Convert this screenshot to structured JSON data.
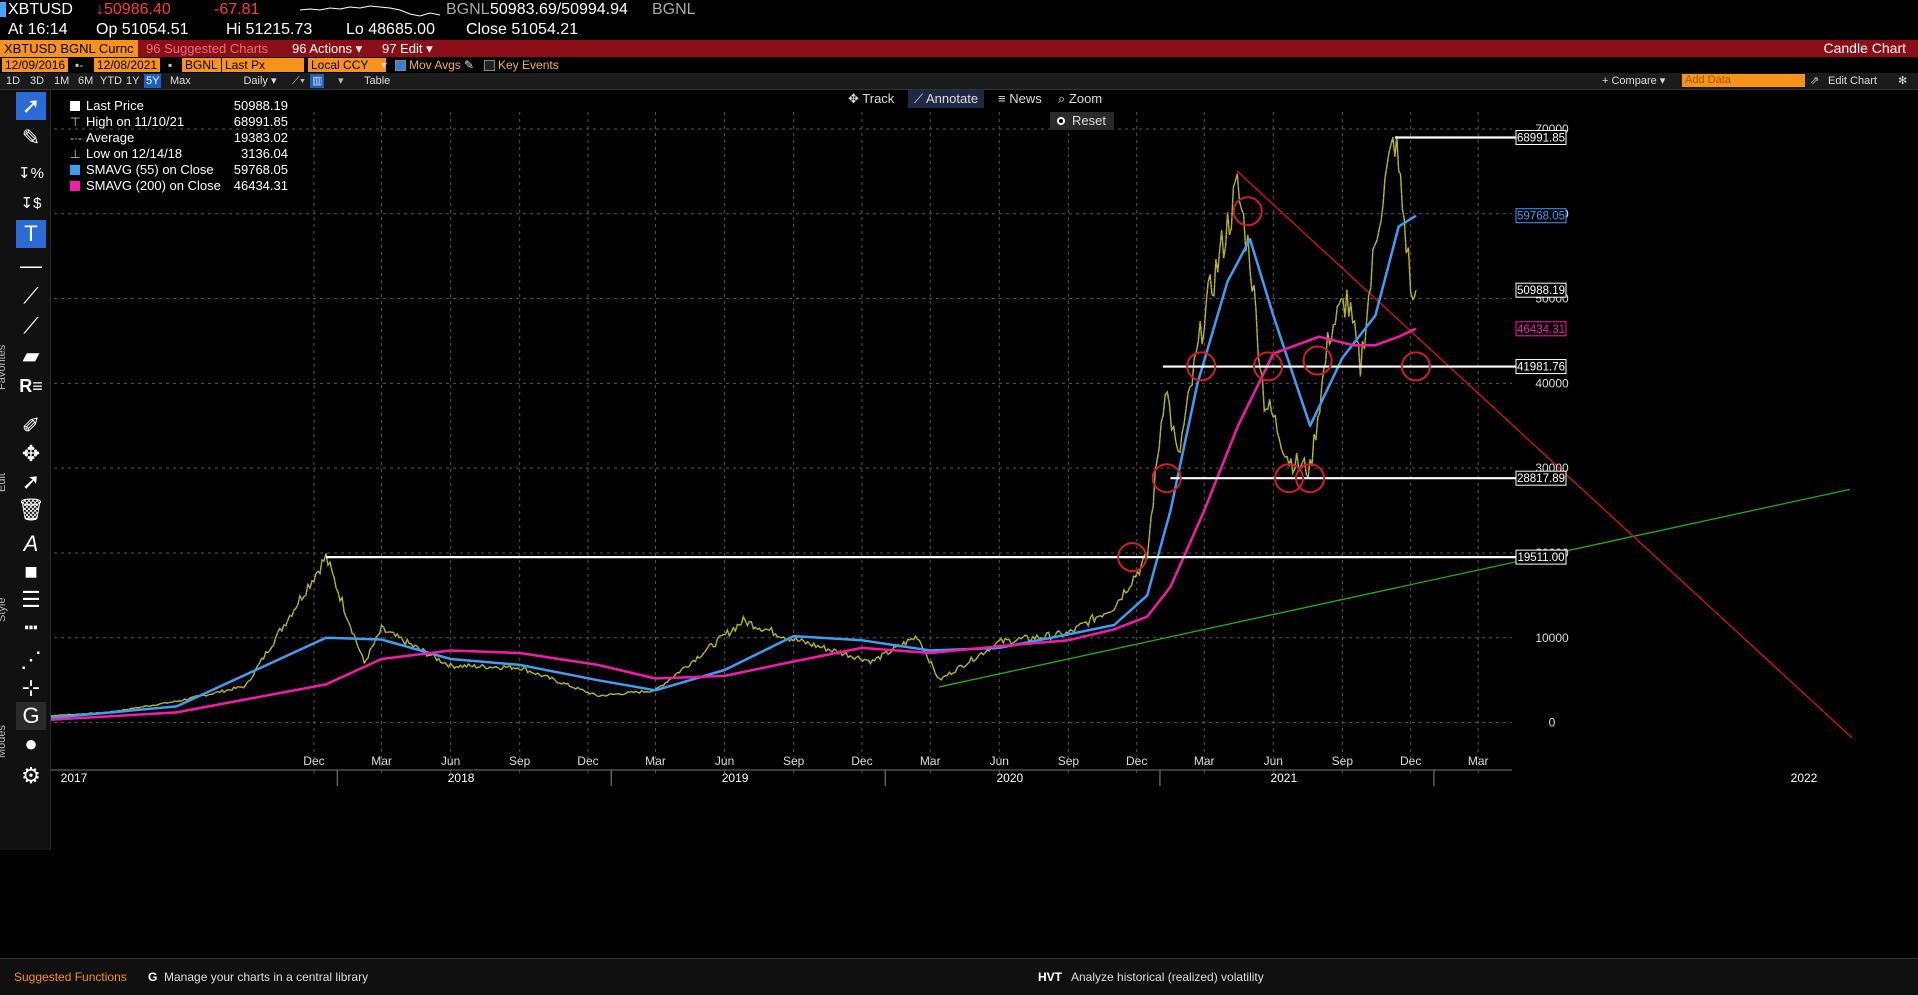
{
  "quote": {
    "symbol": "XBTUSD",
    "last": "↓50986.40",
    "change": "-67.81",
    "source1": "BGNL",
    "bid_ask": "50983.69/50994.94",
    "source2": "BGNL",
    "time": "At 16:14",
    "open": "Op 51054.51",
    "high": "Hi 51215.73",
    "low": "Lo 48685.00",
    "close": "Close 51054.21"
  },
  "menubar": {
    "security": "XBTUSD BGNL Curnc",
    "suggested": "96 Suggested Charts",
    "actions": "96 Actions ▾",
    "edit": "97 Edit ▾",
    "chart_type": "Candle Chart"
  },
  "params": {
    "start_date": "12/09/2016",
    "end_date": "12/08/2021",
    "source": "BGNL",
    "field": "Last Px",
    "currency": "Local CCY",
    "mov_avgs": "Mov Avgs",
    "key_events": "Key Events"
  },
  "ranges": [
    "1D",
    "3D",
    "1M",
    "6M",
    "YTD",
    "1Y",
    "5Y",
    "Max"
  ],
  "active_range": "5Y",
  "period": "Daily ▾",
  "table_label": "Table",
  "compare_label": "+ Compare ▾",
  "add_data_placeholder": "Add Data",
  "edit_chart_label": "Edit Chart",
  "annot_tools": {
    "track": "Track",
    "annotate": "Annotate",
    "news": "News",
    "zoom": "Zoom",
    "reset": "Reset"
  },
  "toolbar_labels": {
    "favorites": "Favorites",
    "edit": "Edit",
    "style": "Style",
    "modes": "Modes"
  },
  "legend": [
    {
      "name": "Last Price",
      "value": "50988.19"
    },
    {
      "name": "High on 11/10/21",
      "value": "68991.85"
    },
    {
      "name": "Average",
      "value": "19383.02"
    },
    {
      "name": "Low on 12/14/18",
      "value": "3136.04"
    },
    {
      "name": "SMAVG (55)  on Close",
      "value": "59768.05"
    },
    {
      "name": "SMAVG (200)  on Close",
      "value": "46434.31"
    }
  ],
  "colors": {
    "price_up": "#f7931a",
    "price_down": "#d7261c",
    "price_mid": "#9acd32",
    "sma55": "#3f9df5",
    "sma200": "#f21ca8",
    "level_line": "#ffffff",
    "trend_green": "#22aa22",
    "trend_red": "#dd1111",
    "circle": "#cc1f2a",
    "menubar": "#8c0f17"
  },
  "footer": {
    "suggested": "Suggested Functions",
    "library_code": "G",
    "library_text": "Manage your charts in a central library",
    "hvt_code": "HVT",
    "hvt_text": "Analyze historical (realized) volatility"
  },
  "chart_data": {
    "type": "line",
    "x_axis": {
      "months": [
        "Dec",
        "Mar",
        "Jun",
        "Sep",
        "Dec",
        "Mar",
        "Jun",
        "Sep",
        "Dec",
        "Mar",
        "Jun",
        "Sep",
        "Dec",
        "Mar",
        "Jun",
        "Sep",
        "Dec",
        "Mar"
      ],
      "years": [
        "2017",
        "2018",
        "2019",
        "2020",
        "2021",
        "2022"
      ]
    },
    "y_axis": {
      "ticks": [
        0,
        10000,
        20000,
        30000,
        40000,
        50000,
        60000,
        70000
      ],
      "ylim": [
        -3000,
        72000
      ],
      "side": "right"
    },
    "series": [
      {
        "name": "Last Price",
        "x": [
          "2016-12-09",
          "2017-03-01",
          "2017-06-01",
          "2017-09-01",
          "2017-12-17",
          "2018-02-06",
          "2018-03-01",
          "2018-06-01",
          "2018-09-01",
          "2018-12-14",
          "2019-03-01",
          "2019-06-26",
          "2019-09-01",
          "2019-12-15",
          "2020-02-13",
          "2020-03-13",
          "2020-06-01",
          "2020-09-01",
          "2020-11-01",
          "2020-12-15",
          "2021-01-08",
          "2021-01-25",
          "2021-03-01",
          "2021-04-14",
          "2021-05-01",
          "2021-05-20",
          "2021-06-01",
          "2021-06-22",
          "2021-07-20",
          "2021-08-15",
          "2021-09-07",
          "2021-09-25",
          "2021-10-20",
          "2021-11-10",
          "2021-11-25",
          "2021-12-04",
          "2021-12-08"
        ],
        "y": [
          770,
          1200,
          2500,
          4300,
          19511,
          7000,
          11000,
          6700,
          6500,
          3136,
          3800,
          12000,
          9800,
          7200,
          10200,
          5000,
          9500,
          10500,
          13700,
          19500,
          40000,
          31000,
          48000,
          63000,
          55000,
          38000,
          36000,
          31000,
          29800,
          46000,
          50000,
          42000,
          60000,
          68991.85,
          57000,
          49000,
          50988.19
        ]
      },
      {
        "name": "SMAVG (55)  on Close",
        "x": [
          "2016-12-09",
          "2017-06-01",
          "2017-12-17",
          "2018-03-01",
          "2018-06-01",
          "2018-09-01",
          "2018-12-14",
          "2019-03-01",
          "2019-06-01",
          "2019-09-01",
          "2019-12-01",
          "2020-03-01",
          "2020-06-01",
          "2020-09-01",
          "2020-11-01",
          "2020-12-15",
          "2021-01-15",
          "2021-02-20",
          "2021-04-01",
          "2021-05-01",
          "2021-06-01",
          "2021-07-20",
          "2021-09-01",
          "2021-10-15",
          "2021-11-15",
          "2021-12-08"
        ],
        "y": [
          500,
          1900,
          10000,
          9800,
          7500,
          6800,
          5000,
          3800,
          6200,
          10200,
          9700,
          8500,
          8800,
          10400,
          11500,
          15000,
          25000,
          40000,
          52000,
          57000,
          48000,
          35000,
          43000,
          48000,
          58500,
          59768.05
        ]
      },
      {
        "name": "SMAVG (200)  on Close",
        "x": [
          "2016-12-09",
          "2017-06-01",
          "2017-12-17",
          "2018-03-01",
          "2018-06-01",
          "2018-09-01",
          "2018-12-14",
          "2019-03-01",
          "2019-06-01",
          "2019-09-01",
          "2019-12-01",
          "2020-03-01",
          "2020-06-01",
          "2020-09-01",
          "2020-11-01",
          "2020-12-15",
          "2021-01-15",
          "2021-03-01",
          "2021-04-15",
          "2021-06-01",
          "2021-08-01",
          "2021-09-15",
          "2021-10-15",
          "2021-11-15",
          "2021-12-08"
        ],
        "y": [
          300,
          1200,
          4500,
          7500,
          8500,
          8200,
          6800,
          5200,
          5500,
          7200,
          8800,
          8200,
          9000,
          9700,
          11000,
          12500,
          16000,
          25000,
          35000,
          43500,
          45500,
          44500,
          44500,
          45500,
          46434.31
        ]
      }
    ],
    "levels": [
      {
        "label": "68991.85",
        "y": 68991.85
      },
      {
        "label": "59768.05",
        "y": 59768.05
      },
      {
        "label": "50988.19",
        "y": 50988.19
      },
      {
        "label": "46434.31",
        "y": 46434.31
      },
      {
        "label": "41981.76",
        "y": 41981.76
      },
      {
        "label": "28817.89",
        "y": 28817.89
      },
      {
        "label": "19511.00",
        "y": 19511.0
      }
    ]
  }
}
